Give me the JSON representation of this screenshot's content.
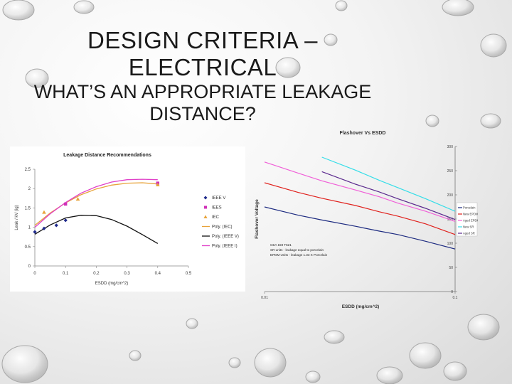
{
  "slide": {
    "title": "DESIGN CRITERIA – ELECTRICAL",
    "subtitle": "WHAT’S AN APPROPRIATE LEAKAGE DISTANCE?"
  },
  "chart_data": [
    {
      "type": "scatter",
      "title": "Leakage Distance Recommendations",
      "xlabel": "ESDD (mg/cm^2)",
      "ylabel": "Leak / kV (ig)",
      "xlim": [
        0,
        0.5
      ],
      "ylim": [
        0,
        2.5
      ],
      "xticks": [
        "0",
        "0.1",
        "0.2",
        "0.3",
        "0.4",
        "0.5"
      ],
      "yticks": [
        "0",
        "0.5",
        "1",
        "1.5",
        "2",
        "2.5"
      ],
      "grid": false,
      "legend_position": "right",
      "series": [
        {
          "name": "IEEE V",
          "kind": "points",
          "marker": "diamond",
          "color": "#1f2a8c",
          "x": [
            0,
            0.03,
            0.07,
            0.1
          ],
          "y": [
            0.88,
            0.97,
            1.05,
            1.18
          ]
        },
        {
          "name": "IEES",
          "kind": "points",
          "marker": "square",
          "color": "#d02fb8",
          "x": [
            0.1,
            0.4
          ],
          "y": [
            1.6,
            2.14
          ]
        },
        {
          "name": "IEC",
          "kind": "points",
          "marker": "triangle",
          "color": "#e8a33a",
          "x": [
            0.03,
            0.14,
            0.4
          ],
          "y": [
            1.39,
            1.73,
            2.1
          ]
        },
        {
          "name": "Poly. (IEC)",
          "kind": "line",
          "color": "#e8a33a",
          "x": [
            0,
            0.05,
            0.1,
            0.15,
            0.2,
            0.25,
            0.3,
            0.35,
            0.4
          ],
          "y": [
            1.05,
            1.37,
            1.63,
            1.84,
            1.99,
            2.09,
            2.14,
            2.15,
            2.12
          ]
        },
        {
          "name": "Poly. (IEEE V)",
          "kind": "line",
          "color": "#111111",
          "x": [
            0,
            0.05,
            0.1,
            0.15,
            0.2,
            0.25,
            0.3,
            0.35,
            0.4
          ],
          "y": [
            0.82,
            1.06,
            1.24,
            1.31,
            1.3,
            1.2,
            1.03,
            0.81,
            0.58
          ]
        },
        {
          "name": "Poly. (IEEE I)",
          "kind": "line",
          "color": "#e040c8",
          "x": [
            0,
            0.05,
            0.1,
            0.15,
            0.2,
            0.25,
            0.3,
            0.35,
            0.4
          ],
          "y": [
            1.0,
            1.35,
            1.64,
            1.88,
            2.05,
            2.17,
            2.23,
            2.24,
            2.23
          ]
        }
      ]
    },
    {
      "type": "line",
      "title": "Flashover Vs ESDD",
      "xlabel": "ESDD (mg/cm^2)",
      "ylabel": "Flashover Voltage",
      "xscale": "log",
      "xlim": [
        0.01,
        0.1
      ],
      "ylim": [
        0,
        300
      ],
      "xticks": [
        "0.01",
        "0.1"
      ],
      "yticks": [
        "0",
        "50",
        "100",
        "150",
        "200",
        "250",
        "300"
      ],
      "grid": false,
      "legend_position": "right",
      "annotations": [
        "CEA 159 T621",
        "SR units - leakage equal to porcelain",
        "EPDM Units - leakage 1.33 X Porcelain"
      ],
      "series": [
        {
          "name": "Porcelain",
          "color": "#1c2a80",
          "x": [
            0.01,
            0.015,
            0.02,
            0.03,
            0.04,
            0.05,
            0.07,
            0.1
          ],
          "y": [
            175,
            158,
            148,
            135,
            125,
            118,
            104,
            88
          ]
        },
        {
          "name": "New EPDM",
          "color": "#e0201c",
          "x": [
            0.01,
            0.015,
            0.02,
            0.03,
            0.04,
            0.05,
            0.07,
            0.1
          ],
          "y": [
            225,
            205,
            193,
            178,
            165,
            156,
            140,
            118
          ]
        },
        {
          "name": "Aged EPDM",
          "color": "#f060d8",
          "x": [
            0.01,
            0.015,
            0.02,
            0.03,
            0.04,
            0.05,
            0.07,
            0.1
          ],
          "y": [
            268,
            245,
            229,
            210,
            196,
            183,
            166,
            145
          ]
        },
        {
          "name": "New SR",
          "color": "#33dde8",
          "x": [
            0.02,
            0.03,
            0.04,
            0.05,
            0.07,
            0.1
          ],
          "y": [
            278,
            251,
            230,
            215,
            192,
            166
          ]
        },
        {
          "name": "Aged SR",
          "color": "#5b2a8e",
          "x": [
            0.02,
            0.03,
            0.04,
            0.05,
            0.07,
            0.1
          ],
          "y": [
            248,
            222,
            206,
            192,
            172,
            149
          ]
        }
      ]
    }
  ]
}
